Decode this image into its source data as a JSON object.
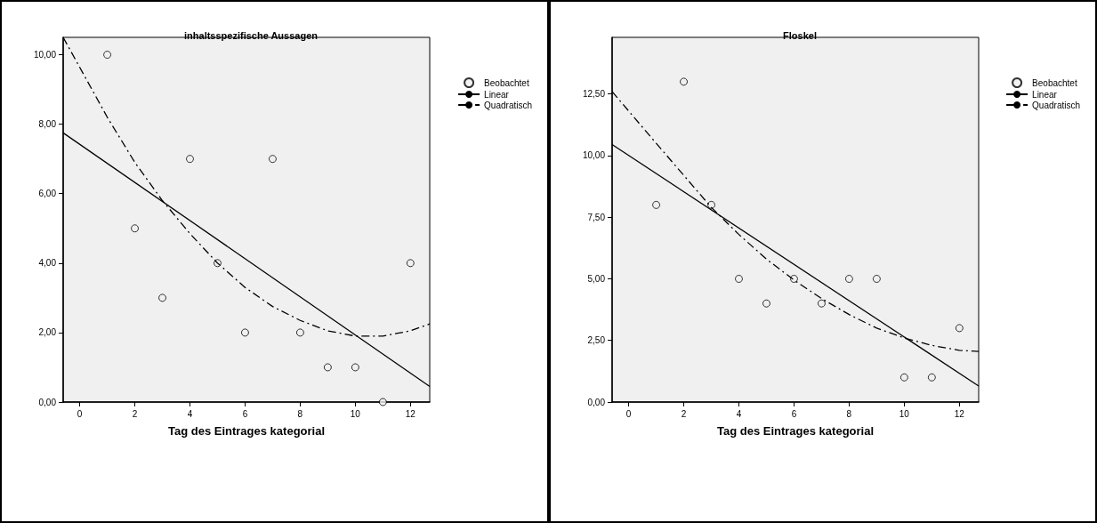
{
  "chart_data": [
    {
      "type": "scatter",
      "title": "inhaltsspezifische Aussagen",
      "xlabel": "Tag des Eintrages kategorial",
      "xlim": [
        -0.6,
        12.7
      ],
      "xticks": [
        0,
        2,
        4,
        6,
        8,
        10,
        12
      ],
      "ylim": [
        0,
        10.5
      ],
      "yticks": [
        {
          "value": 0,
          "label": "0,00"
        },
        {
          "value": 2,
          "label": "2,00"
        },
        {
          "value": 4,
          "label": "4,00"
        },
        {
          "value": 6,
          "label": "6,00"
        },
        {
          "value": 8,
          "label": "8,00"
        },
        {
          "value": 10,
          "label": "10,00"
        }
      ],
      "grid": false,
      "legend": "top right",
      "series": [
        {
          "name": "Beobachtet",
          "color": "#000000",
          "marker": "circle",
          "x": [
            1,
            2,
            3,
            4,
            5,
            6,
            7,
            8,
            9,
            10,
            11,
            12
          ],
          "values": [
            10,
            5,
            3,
            7,
            4,
            2,
            7,
            2,
            1,
            1,
            0,
            4
          ]
        },
        {
          "type": "line",
          "name": "Linear",
          "color": "#000000",
          "marker": "none",
          "line_style": "solid",
          "x": [
            -0.6,
            12.7
          ],
          "values": [
            7.75,
            0.45
          ]
        },
        {
          "type": "line",
          "name": "Quadratisch",
          "color": "#000000",
          "marker": "none",
          "line_style": "dashdot",
          "x": [
            -0.6,
            1,
            2,
            3,
            4,
            5,
            6,
            7,
            8,
            9,
            10,
            11,
            12,
            12.7
          ],
          "values": [
            10.5,
            8.2,
            6.9,
            5.8,
            4.85,
            4.0,
            3.3,
            2.75,
            2.35,
            2.05,
            1.9,
            1.9,
            2.05,
            2.25
          ]
        }
      ]
    },
    {
      "type": "scatter",
      "title": "Floskel",
      "xlabel": "Tag des Eintrages kategorial",
      "xlim": [
        -0.6,
        12.7
      ],
      "xticks": [
        0,
        2,
        4,
        6,
        8,
        10,
        12
      ],
      "ylim": [
        0,
        14.8
      ],
      "yticks": [
        {
          "value": 0,
          "label": "0,00"
        },
        {
          "value": 2.5,
          "label": "2,50"
        },
        {
          "value": 5,
          "label": "5,00"
        },
        {
          "value": 7.5,
          "label": "7,50"
        },
        {
          "value": 10,
          "label": "10,00"
        },
        {
          "value": 12.5,
          "label": "12,50"
        }
      ],
      "grid": false,
      "legend": "top right",
      "series": [
        {
          "name": "Beobachtet",
          "color": "#000000",
          "marker": "circle",
          "x": [
            1,
            2,
            3,
            4,
            5,
            6,
            7,
            8,
            9,
            10,
            11,
            12
          ],
          "values": [
            8,
            13,
            8,
            5,
            4,
            5,
            4,
            5,
            5,
            1,
            1,
            3
          ]
        },
        {
          "type": "line",
          "name": "Linear",
          "color": "#000000",
          "marker": "none",
          "line_style": "solid",
          "x": [
            -0.6,
            12.7
          ],
          "values": [
            10.45,
            0.65
          ]
        },
        {
          "type": "line",
          "name": "Quadratisch",
          "color": "#000000",
          "marker": "none",
          "line_style": "dashdot",
          "x": [
            -0.6,
            1,
            2,
            3,
            4,
            5,
            6,
            7,
            8,
            9,
            10,
            11,
            12,
            12.7
          ],
          "values": [
            12.6,
            10.5,
            9.2,
            7.9,
            6.8,
            5.8,
            4.95,
            4.2,
            3.55,
            3.0,
            2.6,
            2.3,
            2.1,
            2.05
          ]
        }
      ]
    }
  ]
}
